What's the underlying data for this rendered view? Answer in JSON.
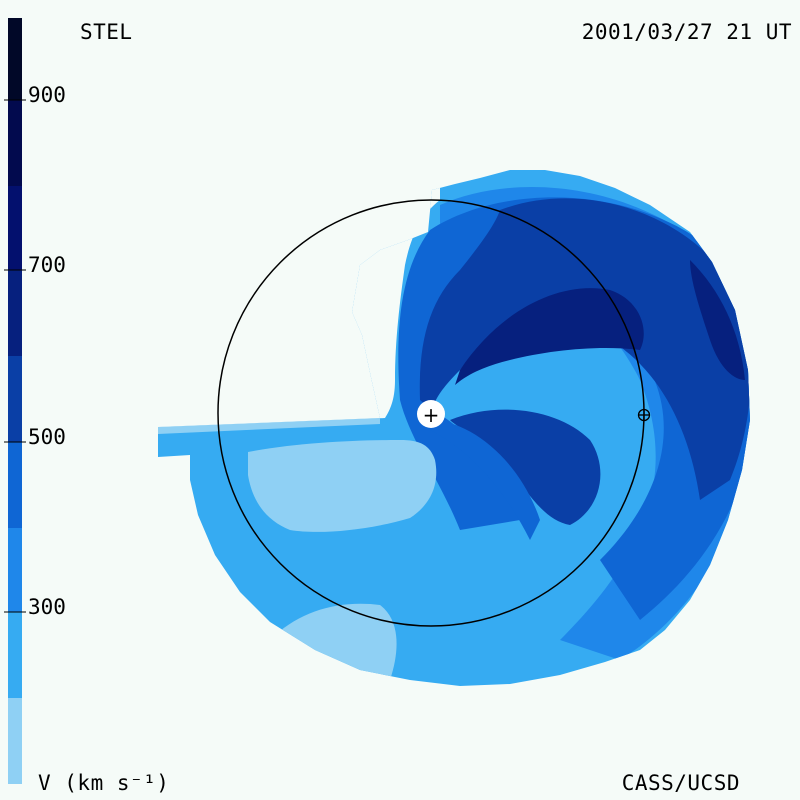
{
  "header": {
    "source_label": "STEL",
    "timestamp": "2001/03/27 21 UT"
  },
  "footer": {
    "colorbar_label": "V (km s⁻¹)",
    "credit": "CASS/UCSD"
  },
  "colorbar": {
    "tick_labels": [
      "900",
      "700",
      "500",
      "300"
    ],
    "tick_values": [
      900,
      700,
      500,
      300
    ],
    "range": [
      100,
      1000
    ],
    "bands": [
      {
        "from": 100,
        "to": 200,
        "color": "#8fd0f4"
      },
      {
        "from": 200,
        "to": 300,
        "color": "#36abf2"
      },
      {
        "from": 300,
        "to": 400,
        "color": "#1f87ea"
      },
      {
        "from": 400,
        "to": 500,
        "color": "#0f66d4"
      },
      {
        "from": 500,
        "to": 600,
        "color": "#0a3fa6"
      },
      {
        "from": 600,
        "to": 700,
        "color": "#06207e"
      },
      {
        "from": 700,
        "to": 800,
        "color": "#03106e"
      },
      {
        "from": 800,
        "to": 900,
        "color": "#020a4e"
      },
      {
        "from": 900,
        "to": 1000,
        "color": "#010828"
      }
    ]
  },
  "markers": {
    "sun": "+",
    "earth": "⊕"
  },
  "colors": {
    "background": "#f5fbf8",
    "lightest": "#8fd0f4",
    "light": "#36abf2",
    "medium": "#1f87ea",
    "medium_dark": "#0f66d4",
    "dark": "#0a3fa6",
    "darker": "#06207e",
    "darkest": "#03106e"
  }
}
